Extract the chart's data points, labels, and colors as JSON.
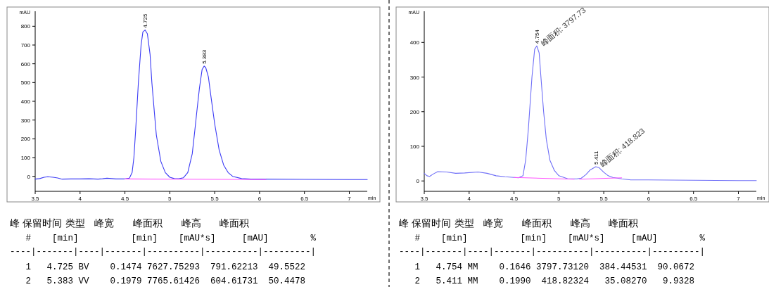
{
  "chart_data": [
    {
      "type": "line",
      "xlabel": "min",
      "ylabel": "mAU",
      "xlim": [
        3.5,
        7.2
      ],
      "ylim": [
        -80,
        880
      ],
      "xticks": [
        3.5,
        4,
        4.5,
        5,
        5.5,
        6,
        6.5,
        7
      ],
      "yticks": [
        0,
        100,
        200,
        300,
        400,
        500,
        600,
        700,
        800
      ],
      "series": [
        {
          "color": "#3b3bf5",
          "x": [
            3.5,
            3.55,
            3.6,
            3.64,
            3.7,
            3.75,
            3.8,
            3.9,
            4.0,
            4.1,
            4.2,
            4.25,
            4.3,
            4.35,
            4.4,
            4.5,
            4.55,
            4.58,
            4.6,
            4.62,
            4.65,
            4.68,
            4.7,
            4.725,
            4.75,
            4.78,
            4.8,
            4.83,
            4.85,
            4.9,
            4.95,
            5.0,
            5.05,
            5.1,
            5.15,
            5.2,
            5.25,
            5.28,
            5.3,
            5.33,
            5.36,
            5.383,
            5.4,
            5.43,
            5.46,
            5.5,
            5.55,
            5.6,
            5.65,
            5.7,
            5.8,
            5.9,
            6.0,
            6.5,
            7.0,
            7.2
          ],
          "values": [
            -15,
            -12,
            -5,
            -2,
            -5,
            -9,
            -15,
            -14,
            -14,
            -13,
            -15,
            -13,
            -10,
            -12,
            -14,
            -14,
            -10,
            20,
            100,
            250,
            500,
            700,
            770,
            780,
            760,
            650,
            500,
            330,
            220,
            80,
            20,
            -5,
            -12,
            -13,
            -8,
            20,
            120,
            250,
            340,
            470,
            570,
            588,
            580,
            530,
            420,
            280,
            140,
            60,
            20,
            0,
            -12,
            -15,
            -15,
            -16,
            -17,
            -17
          ]
        },
        {
          "color": "#ff55ff",
          "x": [
            4.5,
            6.07
          ],
          "values": [
            -14,
            -17
          ]
        }
      ],
      "annotations": [
        {
          "text": "4.725",
          "x": 4.725,
          "y": 780
        },
        {
          "text": "5.383",
          "x": 5.383,
          "y": 588
        },
        "峰 保留时间 类型   峰宽      峰面积      峰高      峰面积",
        "   #    [min]          [min]    [mAU*s]     [mAU]        %",
        "----|-------|----|-------|----------|----------|---------|",
        "   1   4.725 BV    0.1474 7627.75293  791.62213  49.5522",
        "   2   5.383 VV    0.1979 7765.61426  604.61731  50.4478"
      ]
    },
    {
      "type": "line",
      "xlabel": "min",
      "ylabel": "mAU",
      "xlim": [
        3.5,
        7.2
      ],
      "ylim": [
        -30,
        490
      ],
      "xticks": [
        3.5,
        4,
        4.5,
        5,
        5.5,
        6,
        6.5,
        7
      ],
      "yticks": [
        0,
        100,
        200,
        300,
        400
      ],
      "series": [
        {
          "color": "#6f6ff7",
          "x": [
            3.5,
            3.53,
            3.56,
            3.6,
            3.65,
            3.75,
            3.85,
            3.95,
            4.1,
            4.2,
            4.3,
            4.4,
            4.5,
            4.55,
            4.6,
            4.63,
            4.66,
            4.7,
            4.73,
            4.754,
            4.78,
            4.8,
            4.83,
            4.86,
            4.9,
            4.95,
            5.0,
            5.1,
            5.2,
            5.25,
            5.3,
            5.35,
            5.411,
            5.45,
            5.5,
            5.55,
            5.6,
            5.7,
            5.8,
            6.0,
            6.5,
            7.0,
            7.2
          ],
          "values": [
            22,
            15,
            13,
            20,
            27,
            26,
            22,
            23,
            26,
            22,
            15,
            12,
            10,
            9,
            15,
            60,
            150,
            300,
            380,
            390,
            370,
            300,
            200,
            120,
            60,
            30,
            15,
            6,
            6,
            8,
            18,
            32,
            41,
            38,
            25,
            15,
            10,
            6,
            3,
            3,
            2,
            1,
            1
          ]
        },
        {
          "color": "#ff55ff",
          "x": [
            4.5,
            5.17
          ],
          "values": [
            10,
            5
          ]
        },
        {
          "color": "#ff55ff",
          "x": [
            5.23,
            5.7
          ],
          "values": [
            5,
            9
          ]
        }
      ],
      "annotations": [
        {
          "text": "4.754",
          "x": 4.754,
          "y": 390
        },
        {
          "text": "峰面积: 3797.73",
          "x": 4.754,
          "y": 390
        },
        {
          "text": "5.411",
          "x": 5.411,
          "y": 41
        },
        {
          "text": "峰面积: 418.823",
          "x": 5.411,
          "y": 41
        },
        "峰 保留时间 类型   峰宽      峰面积      峰高      峰面积",
        "   #    [min]          [min]    [mAU*s]     [mAU]        %",
        "----|-------|----|-------|----------|----------|---------|",
        "   1   4.754 MM    0.1646 3797.73120  384.44531  90.0672",
        "   2   5.411 MM    0.1990  418.82324   35.08270   9.9328"
      ]
    }
  ]
}
